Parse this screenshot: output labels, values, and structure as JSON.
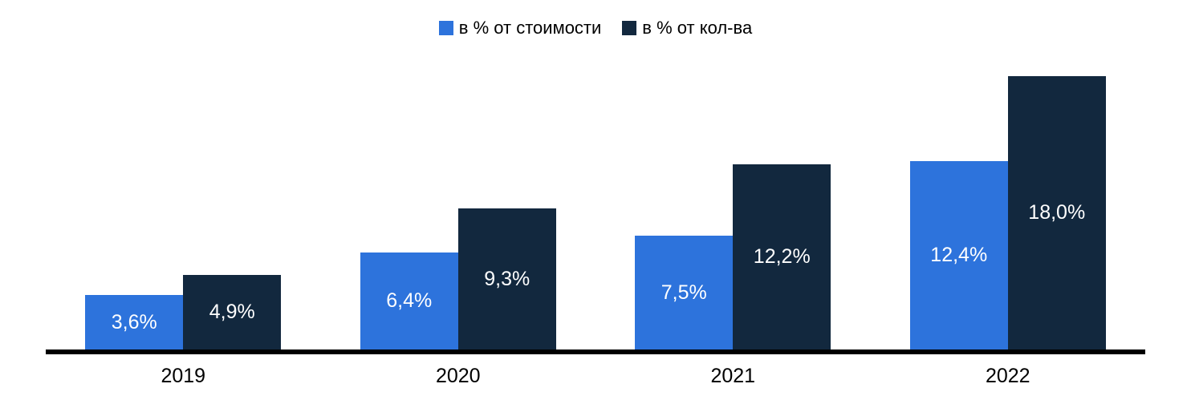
{
  "chart_data": {
    "type": "bar",
    "title": "",
    "xlabel": "",
    "ylabel": "",
    "categories": [
      "2019",
      "2020",
      "2021",
      "2022"
    ],
    "series": [
      {
        "name": "в % от стоимости",
        "color": "#2d73dc",
        "values": [
          3.6,
          6.4,
          7.5,
          12.4
        ],
        "labels": [
          "3,6%",
          "6,4%",
          "7,5%",
          "12,4%"
        ]
      },
      {
        "name": "в % от кол-ва",
        "color": "#12283e",
        "values": [
          4.9,
          9.3,
          12.2,
          18.0
        ],
        "labels": [
          "4,9%",
          "9,3%",
          "12,2%",
          "18,0%"
        ]
      }
    ],
    "ylim": [
      0,
      18.2
    ],
    "grid": false,
    "legend_position": "top-center",
    "value_label_color": "#ffffff",
    "value_label_format": "comma-decimal percent",
    "axis_line_color": "#000000",
    "background": "#ffffff"
  }
}
